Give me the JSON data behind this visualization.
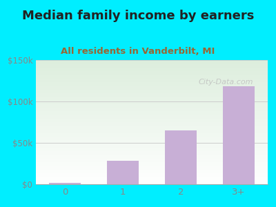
{
  "categories": [
    "0",
    "1",
    "2",
    "3+"
  ],
  "values": [
    2000,
    28000,
    65000,
    118000
  ],
  "bar_color": "#c8afd6",
  "bar_edgecolor": "#c8afd6",
  "title": "Median family income by earners",
  "subtitle": "All residents in Vanderbilt, MI",
  "title_color": "#222222",
  "subtitle_color": "#996633",
  "ylim": [
    0,
    150000
  ],
  "yticks": [
    0,
    50000,
    100000,
    150000
  ],
  "ytick_labels": [
    "$0",
    "$50k",
    "$100k",
    "$150k"
  ],
  "outer_bg": "#00eeff",
  "plot_bg_top": "#ddeedd",
  "plot_bg_bottom": "#ffffff",
  "watermark": "City-Data.com",
  "watermark_color": "#bbbbbb",
  "watermark_alpha": 0.75,
  "title_fontsize": 13,
  "subtitle_fontsize": 9.5,
  "tick_color": "#888888",
  "grid_color": "#cccccc",
  "figsize": [
    4.0,
    3.0
  ],
  "dpi": 100
}
